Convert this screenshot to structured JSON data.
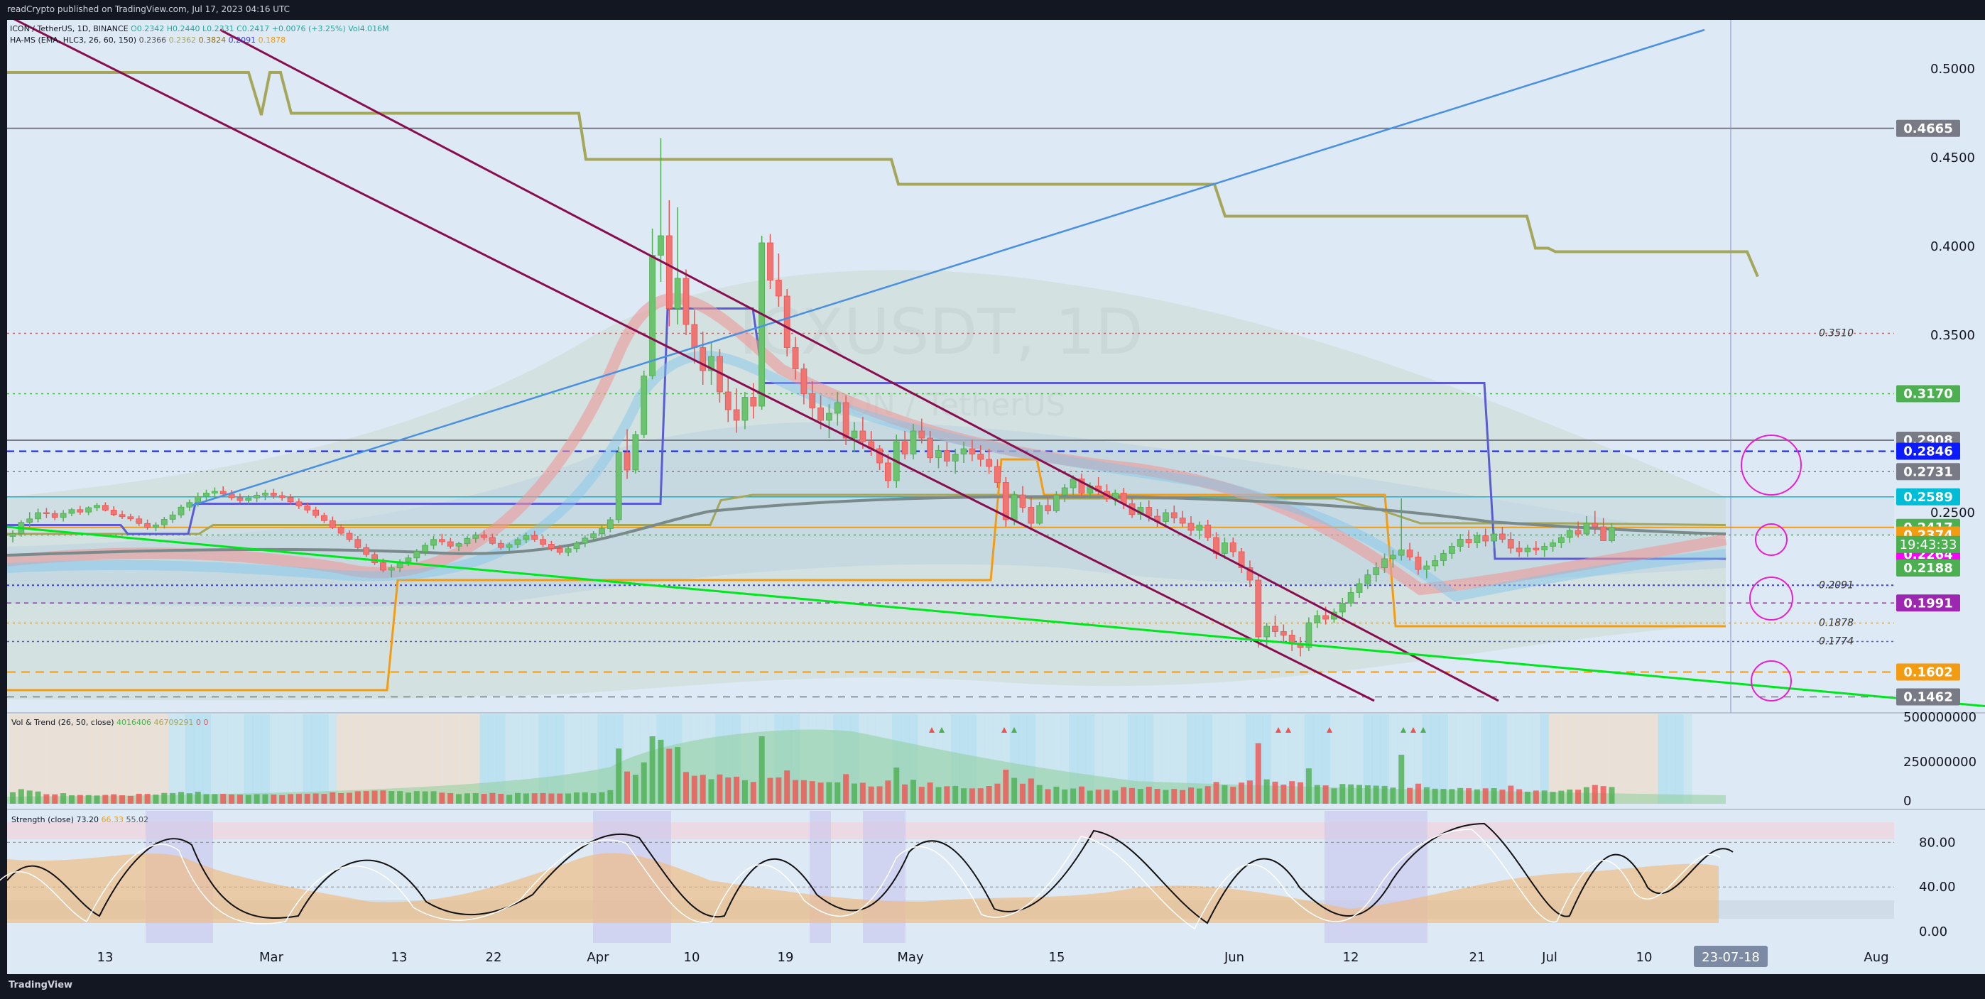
{
  "header": {
    "publisher": "readCrypto published on TradingView.com, Jul 17, 2023 04:16 UTC"
  },
  "footer": {
    "brand": "TradingView"
  },
  "watermark": {
    "symbol": "ICXUSDT, 1D",
    "name": "ICON / TetherUS"
  },
  "legend": {
    "main": "ICON / TetherUS, 1D, BINANCE",
    "ohlc": "O0.2342 H0.2440 L0.2331 C0.2417 +0.0076 (+3.25%) Vol4.016M",
    "hams_label": "HA-MS (EMA, HLC3, 26, 60, 150)",
    "hams_values": [
      "0.2366",
      "0.2362",
      "0.3824",
      "0.2091",
      "0.1878"
    ],
    "vol_label": "Vol & Trend (26, 50, close)",
    "vol_values": [
      "4016406",
      "46709291",
      "0",
      "0"
    ],
    "strength_label": "Strength (close)",
    "strength_values": [
      "73.20",
      "66.33",
      "55.02"
    ]
  },
  "colors": {
    "up": "#4caf50",
    "down": "#ef5350",
    "blue_line": "#4a90e2",
    "maroon": "#880e4f",
    "green_line": "#00e61e",
    "olive": "#a4a65a",
    "indigo": "#5b5bd6",
    "orange": "#f39c12",
    "magenta": "#e91ed0"
  },
  "chart_data": {
    "type": "candlestick",
    "title": "ICXUSDT, 1D",
    "ylim": [
      0.142,
      0.52
    ],
    "x_tick_labels": [
      "13",
      "Mar",
      "13",
      "22",
      "Apr",
      "10",
      "19",
      "May",
      "15",
      "Jun",
      "12",
      "21",
      "Jul",
      "10",
      "23-07-18",
      "Aug"
    ],
    "price_axis_ticks": [
      "0.5000",
      "0.4500",
      "0.4000",
      "0.3500",
      "0.2500"
    ],
    "price_labels": [
      {
        "value": 0.4665,
        "text": "0.4665",
        "bg": "#787b86"
      },
      {
        "value": 0.317,
        "text": "0.3170",
        "bg": "#4caf50"
      },
      {
        "value": 0.2908,
        "text": "0.2908",
        "bg": "#787b86"
      },
      {
        "value": 0.2846,
        "text": "0.2846",
        "bg": "#0c1aff"
      },
      {
        "value": 0.2731,
        "text": "0.2731",
        "bg": "#787b86"
      },
      {
        "value": 0.2589,
        "text": "0.2589",
        "bg": "#00bcd4"
      },
      {
        "value": 0.2417,
        "text": "0.2417",
        "bg": "#4caf50"
      },
      {
        "value": 0.2374,
        "text": "0.2374",
        "bg": "#f39c12"
      },
      {
        "value": 0.2264,
        "text": "0.2264",
        "bg": "#ff00ff"
      },
      {
        "value": 0.2188,
        "text": "0.2188",
        "bg": "#4caf50"
      },
      {
        "value": 0.1991,
        "text": "0.1991",
        "bg": "#9c27b0"
      },
      {
        "value": 0.1602,
        "text": "0.1602",
        "bg": "#f39c12"
      },
      {
        "value": 0.1462,
        "text": "0.1462",
        "bg": "#787b86"
      }
    ],
    "countdown": "19:43:33",
    "inline_labels": [
      {
        "value": 0.351,
        "text": "0.3510"
      },
      {
        "value": 0.2091,
        "text": "0.2091"
      },
      {
        "value": 0.1878,
        "text": "0.1878"
      },
      {
        "value": 0.1774,
        "text": "0.1774"
      }
    ],
    "candles": [
      [
        0.2366,
        0.2401,
        0.2332,
        0.2382
      ],
      [
        0.2382,
        0.2458,
        0.2364,
        0.2445
      ],
      [
        0.2445,
        0.2503,
        0.2418,
        0.2465
      ],
      [
        0.2465,
        0.2523,
        0.2445,
        0.25
      ],
      [
        0.25,
        0.2526,
        0.247,
        0.2495
      ],
      [
        0.2495,
        0.2513,
        0.2458,
        0.2473
      ],
      [
        0.2473,
        0.2514,
        0.245,
        0.2496
      ],
      [
        0.2496,
        0.2527,
        0.248,
        0.2517
      ],
      [
        0.2517,
        0.2538,
        0.2488,
        0.2503
      ],
      [
        0.2503,
        0.2535,
        0.2486,
        0.2528
      ],
      [
        0.2528,
        0.2554,
        0.2508,
        0.2541
      ],
      [
        0.2541,
        0.2558,
        0.2507,
        0.2514
      ],
      [
        0.2514,
        0.2536,
        0.248,
        0.2489
      ],
      [
        0.2489,
        0.2511,
        0.2464,
        0.2477
      ],
      [
        0.2477,
        0.2493,
        0.2451,
        0.2465
      ],
      [
        0.2465,
        0.2484,
        0.2425,
        0.2439
      ],
      [
        0.2439,
        0.2461,
        0.2404,
        0.2418
      ],
      [
        0.2418,
        0.2446,
        0.2395,
        0.2431
      ],
      [
        0.2431,
        0.2476,
        0.2411,
        0.2462
      ],
      [
        0.2462,
        0.2507,
        0.2442,
        0.2487
      ],
      [
        0.2487,
        0.2545,
        0.247,
        0.2531
      ],
      [
        0.2531,
        0.2574,
        0.2509,
        0.2557
      ],
      [
        0.2557,
        0.2613,
        0.2534,
        0.259
      ],
      [
        0.259,
        0.2629,
        0.257,
        0.261
      ],
      [
        0.261,
        0.2642,
        0.2582,
        0.262
      ],
      [
        0.262,
        0.2648,
        0.2586,
        0.2605
      ],
      [
        0.2605,
        0.2627,
        0.257,
        0.2584
      ],
      [
        0.2584,
        0.2608,
        0.2553,
        0.2569
      ],
      [
        0.2569,
        0.2599,
        0.2547,
        0.2583
      ],
      [
        0.2583,
        0.2617,
        0.2559,
        0.2598
      ],
      [
        0.2598,
        0.2629,
        0.2571,
        0.261
      ],
      [
        0.261,
        0.2634,
        0.2578,
        0.2596
      ],
      [
        0.2596,
        0.2618,
        0.2567,
        0.2585
      ],
      [
        0.2585,
        0.2604,
        0.2545,
        0.2561
      ],
      [
        0.2561,
        0.258,
        0.252,
        0.2538
      ],
      [
        0.2538,
        0.2557,
        0.2497,
        0.2515
      ],
      [
        0.2515,
        0.2533,
        0.247,
        0.2484
      ],
      [
        0.2484,
        0.25,
        0.2442,
        0.2455
      ],
      [
        0.2455,
        0.2478,
        0.2408,
        0.2417
      ],
      [
        0.2417,
        0.2434,
        0.2371,
        0.2384
      ],
      [
        0.2384,
        0.24,
        0.2335,
        0.2349
      ],
      [
        0.2349,
        0.2368,
        0.2292,
        0.2303
      ],
      [
        0.2303,
        0.2325,
        0.2249,
        0.2264
      ],
      [
        0.2264,
        0.2283,
        0.2205,
        0.2218
      ],
      [
        0.2218,
        0.2242,
        0.2164,
        0.2176
      ],
      [
        0.2176,
        0.2207,
        0.2135,
        0.2189
      ],
      [
        0.2189,
        0.2238,
        0.2166,
        0.2224
      ],
      [
        0.2224,
        0.2262,
        0.22,
        0.2245
      ],
      [
        0.2245,
        0.2296,
        0.2222,
        0.2281
      ],
      [
        0.2281,
        0.2331,
        0.2258,
        0.2316
      ],
      [
        0.2316,
        0.2368,
        0.2293,
        0.2349
      ],
      [
        0.2349,
        0.2381,
        0.2316,
        0.2336
      ],
      [
        0.2336,
        0.2358,
        0.2297,
        0.2311
      ],
      [
        0.2311,
        0.2336,
        0.2283,
        0.2326
      ],
      [
        0.2326,
        0.2368,
        0.2309,
        0.2355
      ],
      [
        0.2355,
        0.2391,
        0.233,
        0.2375
      ],
      [
        0.2375,
        0.2401,
        0.2345,
        0.236
      ],
      [
        0.236,
        0.2381,
        0.2318,
        0.2327
      ],
      [
        0.2327,
        0.2346,
        0.2291,
        0.2304
      ],
      [
        0.2304,
        0.233,
        0.2283,
        0.232
      ],
      [
        0.232,
        0.2361,
        0.2299,
        0.2348
      ],
      [
        0.2348,
        0.2387,
        0.2328,
        0.2371
      ],
      [
        0.2371,
        0.2397,
        0.2336,
        0.2349
      ],
      [
        0.2349,
        0.2369,
        0.2307,
        0.2322
      ],
      [
        0.2322,
        0.2341,
        0.2283,
        0.2298
      ],
      [
        0.2298,
        0.2319,
        0.2262,
        0.2276
      ],
      [
        0.2276,
        0.2312,
        0.2255,
        0.2297
      ],
      [
        0.2297,
        0.234,
        0.2275,
        0.2328
      ],
      [
        0.2328,
        0.2372,
        0.2306,
        0.2357
      ],
      [
        0.2357,
        0.2396,
        0.2335,
        0.2381
      ],
      [
        0.2381,
        0.2428,
        0.2359,
        0.241
      ],
      [
        0.241,
        0.2476,
        0.2389,
        0.246
      ],
      [
        0.246,
        0.2872,
        0.244,
        0.284
      ],
      [
        0.284,
        0.297,
        0.269,
        0.274
      ],
      [
        0.274,
        0.296,
        0.272,
        0.294
      ],
      [
        0.294,
        0.33,
        0.292,
        0.327
      ],
      [
        0.327,
        0.41,
        0.325,
        0.395
      ],
      [
        0.395,
        0.461,
        0.38,
        0.406
      ],
      [
        0.406,
        0.426,
        0.355,
        0.365
      ],
      [
        0.365,
        0.422,
        0.356,
        0.382
      ],
      [
        0.382,
        0.387,
        0.35,
        0.356
      ],
      [
        0.356,
        0.364,
        0.334,
        0.343
      ],
      [
        0.343,
        0.352,
        0.322,
        0.33
      ],
      [
        0.33,
        0.346,
        0.322,
        0.338
      ],
      [
        0.338,
        0.342,
        0.312,
        0.318
      ],
      [
        0.318,
        0.326,
        0.301,
        0.308
      ],
      [
        0.308,
        0.32,
        0.295,
        0.302
      ],
      [
        0.302,
        0.318,
        0.297,
        0.315
      ],
      [
        0.315,
        0.323,
        0.303,
        0.31
      ],
      [
        0.31,
        0.406,
        0.308,
        0.402
      ],
      [
        0.402,
        0.407,
        0.376,
        0.381
      ],
      [
        0.381,
        0.396,
        0.366,
        0.372
      ],
      [
        0.372,
        0.376,
        0.338,
        0.343
      ],
      [
        0.343,
        0.349,
        0.325,
        0.331
      ],
      [
        0.331,
        0.334,
        0.311,
        0.317
      ],
      [
        0.317,
        0.324,
        0.303,
        0.309
      ],
      [
        0.309,
        0.316,
        0.297,
        0.302
      ],
      [
        0.302,
        0.311,
        0.292,
        0.306
      ],
      [
        0.306,
        0.318,
        0.299,
        0.312
      ],
      [
        0.312,
        0.316,
        0.288,
        0.292
      ],
      [
        0.292,
        0.301,
        0.284,
        0.296
      ],
      [
        0.296,
        0.304,
        0.286,
        0.29
      ],
      [
        0.29,
        0.296,
        0.282,
        0.286
      ],
      [
        0.286,
        0.288,
        0.274,
        0.278
      ],
      [
        0.278,
        0.283,
        0.264,
        0.268
      ],
      [
        0.268,
        0.294,
        0.264,
        0.29
      ],
      [
        0.29,
        0.296,
        0.28,
        0.283
      ],
      [
        0.283,
        0.3,
        0.28,
        0.296
      ],
      [
        0.296,
        0.303,
        0.289,
        0.292
      ],
      [
        0.292,
        0.296,
        0.278,
        0.281
      ],
      [
        0.281,
        0.288,
        0.275,
        0.285
      ],
      [
        0.285,
        0.29,
        0.276,
        0.279
      ],
      [
        0.279,
        0.286,
        0.272,
        0.283
      ],
      [
        0.283,
        0.29,
        0.278,
        0.286
      ],
      [
        0.286,
        0.291,
        0.279,
        0.283
      ],
      [
        0.283,
        0.288,
        0.276,
        0.28
      ],
      [
        0.28,
        0.286,
        0.272,
        0.276
      ],
      [
        0.276,
        0.28,
        0.264,
        0.267
      ],
      [
        0.267,
        0.27,
        0.242,
        0.246
      ],
      [
        0.246,
        0.262,
        0.243,
        0.26
      ],
      [
        0.26,
        0.265,
        0.25,
        0.253
      ],
      [
        0.253,
        0.259,
        0.24,
        0.244
      ],
      [
        0.244,
        0.256,
        0.243,
        0.254
      ],
      [
        0.254,
        0.259,
        0.249,
        0.251
      ],
      [
        0.251,
        0.262,
        0.25,
        0.26
      ],
      [
        0.26,
        0.266,
        0.256,
        0.264
      ],
      [
        0.264,
        0.271,
        0.26,
        0.269
      ],
      [
        0.269,
        0.272,
        0.259,
        0.261
      ],
      [
        0.261,
        0.267,
        0.258,
        0.265
      ],
      [
        0.265,
        0.27,
        0.26,
        0.262
      ],
      [
        0.262,
        0.266,
        0.256,
        0.258
      ],
      [
        0.258,
        0.263,
        0.254,
        0.261
      ],
      [
        0.261,
        0.264,
        0.252,
        0.255
      ],
      [
        0.255,
        0.258,
        0.247,
        0.249
      ],
      [
        0.249,
        0.256,
        0.246,
        0.253
      ],
      [
        0.253,
        0.257,
        0.245,
        0.248
      ],
      [
        0.248,
        0.252,
        0.242,
        0.245
      ],
      [
        0.245,
        0.252,
        0.243,
        0.25
      ],
      [
        0.25,
        0.254,
        0.244,
        0.247
      ],
      [
        0.247,
        0.251,
        0.242,
        0.244
      ],
      [
        0.244,
        0.248,
        0.237,
        0.24
      ],
      [
        0.24,
        0.245,
        0.235,
        0.243
      ],
      [
        0.243,
        0.246,
        0.234,
        0.236
      ],
      [
        0.236,
        0.239,
        0.224,
        0.227
      ],
      [
        0.227,
        0.236,
        0.224,
        0.233
      ],
      [
        0.233,
        0.236,
        0.225,
        0.228
      ],
      [
        0.228,
        0.23,
        0.216,
        0.219
      ],
      [
        0.219,
        0.223,
        0.208,
        0.212
      ],
      [
        0.212,
        0.215,
        0.174,
        0.18
      ],
      [
        0.18,
        0.188,
        0.175,
        0.186
      ],
      [
        0.186,
        0.192,
        0.18,
        0.183
      ],
      [
        0.183,
        0.187,
        0.177,
        0.181
      ],
      [
        0.181,
        0.184,
        0.172,
        0.176
      ],
      [
        0.176,
        0.18,
        0.169,
        0.174
      ],
      [
        0.174,
        0.191,
        0.172,
        0.188
      ],
      [
        0.188,
        0.195,
        0.185,
        0.192
      ],
      [
        0.192,
        0.197,
        0.187,
        0.19
      ],
      [
        0.19,
        0.196,
        0.188,
        0.194
      ],
      [
        0.194,
        0.202,
        0.191,
        0.199
      ],
      [
        0.199,
        0.208,
        0.197,
        0.205
      ],
      [
        0.205,
        0.213,
        0.202,
        0.21
      ],
      [
        0.21,
        0.218,
        0.207,
        0.215
      ],
      [
        0.215,
        0.222,
        0.211,
        0.219
      ],
      [
        0.219,
        0.227,
        0.216,
        0.224
      ],
      [
        0.224,
        0.229,
        0.219,
        0.226
      ],
      [
        0.226,
        0.258,
        0.223,
        0.229
      ],
      [
        0.229,
        0.233,
        0.223,
        0.225
      ],
      [
        0.225,
        0.228,
        0.215,
        0.218
      ],
      [
        0.218,
        0.223,
        0.213,
        0.22
      ],
      [
        0.22,
        0.226,
        0.217,
        0.223
      ],
      [
        0.223,
        0.229,
        0.22,
        0.227
      ],
      [
        0.227,
        0.233,
        0.224,
        0.231
      ],
      [
        0.231,
        0.238,
        0.228,
        0.235
      ],
      [
        0.235,
        0.24,
        0.23,
        0.233
      ],
      [
        0.233,
        0.239,
        0.23,
        0.237
      ],
      [
        0.237,
        0.241,
        0.231,
        0.234
      ],
      [
        0.234,
        0.24,
        0.23,
        0.238
      ],
      [
        0.238,
        0.242,
        0.233,
        0.235
      ],
      [
        0.235,
        0.239,
        0.227,
        0.23
      ],
      [
        0.23,
        0.234,
        0.225,
        0.228
      ],
      [
        0.228,
        0.232,
        0.225,
        0.23
      ],
      [
        0.23,
        0.234,
        0.226,
        0.229
      ],
      [
        0.229,
        0.233,
        0.225,
        0.231
      ],
      [
        0.231,
        0.235,
        0.228,
        0.233
      ],
      [
        0.233,
        0.238,
        0.23,
        0.236
      ],
      [
        0.236,
        0.242,
        0.233,
        0.24
      ],
      [
        0.24,
        0.245,
        0.236,
        0.238
      ],
      [
        0.238,
        0.248,
        0.237,
        0.244
      ],
      [
        0.244,
        0.251,
        0.238,
        0.242
      ],
      [
        0.242,
        0.247,
        0.235,
        0.2342
      ],
      [
        0.2342,
        0.244,
        0.2331,
        0.2417
      ]
    ],
    "volume_axis_ticks": [
      "500000000",
      "250000000",
      "0"
    ],
    "strength_axis_ticks": [
      "80.00",
      "40.00",
      "0.00"
    ]
  }
}
